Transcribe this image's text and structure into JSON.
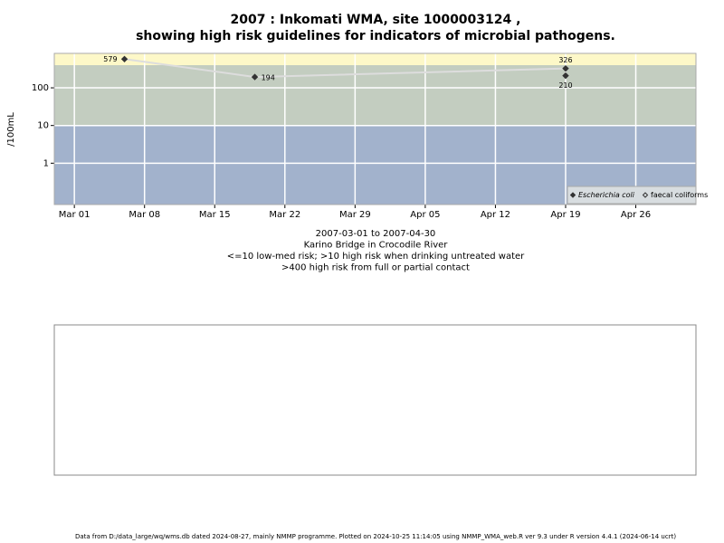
{
  "chart_data": {
    "type": "line",
    "title": [
      "2007 : Inkomati WMA, site 1000003124 ,",
      "showing high risk guidelines for indicators of microbial pathogens."
    ],
    "ylabel": "/100mL",
    "caption": [
      "2007-03-01 to 2007-04-30",
      "Karino Bridge in Crocodile River",
      "<=10 low-med risk; >10 high risk when drinking untreated water",
      ">400 high risk from full or partial contact"
    ],
    "footer": "Data from D:/data_large/wq/wms.db dated 2024-08-27, mainly NMMP programme. Plotted on 2024-10-25 11:14:05 using NMMP_WMA_web.R ver 9.3 under R version 4.4.1 (2024-06-14 ucrt)",
    "log_y": true,
    "grid": true,
    "legend": "bottom-right",
    "xlim": [
      "2007-02-27",
      "2007-05-02"
    ],
    "xticks": [
      {
        "value": "2007-03-01",
        "label": "Mar 01"
      },
      {
        "value": "2007-03-08",
        "label": "Mar 08"
      },
      {
        "value": "2007-03-15",
        "label": "Mar 15"
      },
      {
        "value": "2007-03-22",
        "label": "Mar 22"
      },
      {
        "value": "2007-03-29",
        "label": "Mar 29"
      },
      {
        "value": "2007-04-05",
        "label": "Apr 05"
      },
      {
        "value": "2007-04-12",
        "label": "Apr 12"
      },
      {
        "value": "2007-04-19",
        "label": "Apr 19"
      },
      {
        "value": "2007-04-26",
        "label": "Apr 26"
      }
    ],
    "ylim": [
      0.08,
      820
    ],
    "yticks": [
      1,
      10,
      100
    ],
    "band_thresholds": [
      10,
      400
    ],
    "band_colors": [
      "#a2b2cc",
      "#c3cdc0",
      "#fdf8c8"
    ],
    "series": [
      {
        "name": "Escherichia coli",
        "color": "#333333",
        "line_color": "#dddddd",
        "marker": "filled",
        "x": [
          "2007-03-06",
          "2007-03-19",
          "2007-04-19"
        ],
        "values": [
          579,
          194,
          326
        ]
      },
      {
        "name": "faecal coliforms",
        "color": "#333333",
        "marker": "open",
        "x": [
          "2007-04-19"
        ],
        "values": [
          210
        ]
      }
    ]
  }
}
